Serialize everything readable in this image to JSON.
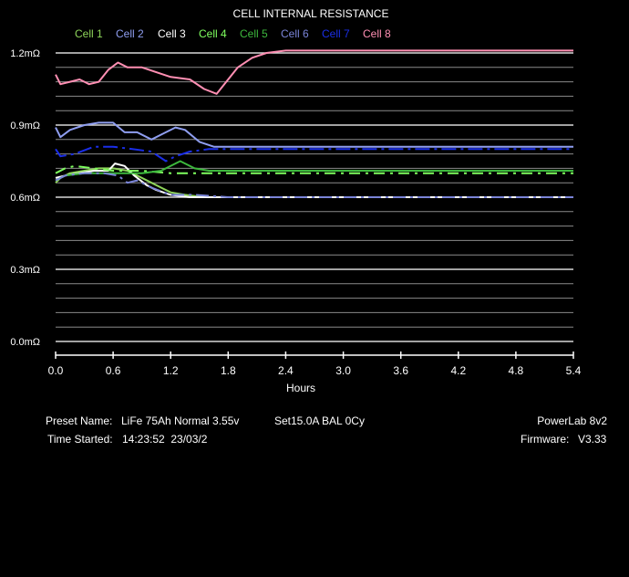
{
  "chart_data": {
    "type": "line",
    "title": "CELL INTERNAL RESISTANCE",
    "xlabel": "Hours",
    "ylabel": "",
    "xlim": [
      0.0,
      5.4
    ],
    "ylim": [
      0.0,
      1.2
    ],
    "x_ticks": [
      "0.0",
      "0.6",
      "1.2",
      "1.8",
      "2.4",
      "3.0",
      "3.6",
      "4.2",
      "4.8",
      "5.4"
    ],
    "y_ticks": [
      {
        "value": 0.0,
        "label": "0.0mΩ"
      },
      {
        "value": 0.3,
        "label": "0.3mΩ"
      },
      {
        "value": 0.6,
        "label": "0.6mΩ"
      },
      {
        "value": 0.9,
        "label": "0.9mΩ"
      },
      {
        "value": 1.2,
        "label": "1.2mΩ"
      }
    ],
    "grid": true,
    "legend": "top-center",
    "series": [
      {
        "name": "Cell 1",
        "color": "#8ed45a",
        "dash": "",
        "points": [
          [
            0,
            0.66
          ],
          [
            0.05,
            0.68
          ],
          [
            0.15,
            0.7
          ],
          [
            0.3,
            0.71
          ],
          [
            0.45,
            0.72
          ],
          [
            0.6,
            0.72
          ],
          [
            0.75,
            0.71
          ],
          [
            0.9,
            0.68
          ],
          [
            1.0,
            0.66
          ],
          [
            1.1,
            0.64
          ],
          [
            1.2,
            0.62
          ],
          [
            1.35,
            0.61
          ],
          [
            1.55,
            0.6
          ],
          [
            1.8,
            0.6
          ],
          [
            5.4,
            0.6
          ]
        ]
      },
      {
        "name": "Cell 2",
        "color": "#8f9ef0",
        "dash": "",
        "points": [
          [
            0,
            0.89
          ],
          [
            0.05,
            0.85
          ],
          [
            0.15,
            0.88
          ],
          [
            0.3,
            0.9
          ],
          [
            0.45,
            0.91
          ],
          [
            0.6,
            0.91
          ],
          [
            0.72,
            0.87
          ],
          [
            0.85,
            0.87
          ],
          [
            1.0,
            0.84
          ],
          [
            1.1,
            0.86
          ],
          [
            1.25,
            0.89
          ],
          [
            1.35,
            0.88
          ],
          [
            1.5,
            0.83
          ],
          [
            1.65,
            0.81
          ],
          [
            1.8,
            0.81
          ],
          [
            2.0,
            0.81
          ],
          [
            2.4,
            0.81
          ],
          [
            5.4,
            0.81
          ]
        ]
      },
      {
        "name": "Cell 3",
        "color": "#ffffff",
        "dash": "",
        "points": [
          [
            0,
            0.68
          ],
          [
            0.1,
            0.69
          ],
          [
            0.25,
            0.7
          ],
          [
            0.4,
            0.71
          ],
          [
            0.55,
            0.71
          ],
          [
            0.62,
            0.74
          ],
          [
            0.72,
            0.73
          ],
          [
            0.82,
            0.69
          ],
          [
            0.95,
            0.65
          ],
          [
            1.05,
            0.63
          ],
          [
            1.2,
            0.61
          ],
          [
            1.4,
            0.6
          ],
          [
            1.8,
            0.6
          ],
          [
            5.4,
            0.6
          ]
        ]
      },
      {
        "name": "Cell 4",
        "color": "#7fff5f",
        "dash": "12 6 3 6",
        "points": [
          [
            0,
            0.7
          ],
          [
            0.1,
            0.72
          ],
          [
            0.2,
            0.73
          ],
          [
            0.4,
            0.72
          ],
          [
            0.6,
            0.71
          ],
          [
            0.9,
            0.71
          ],
          [
            1.2,
            0.7
          ],
          [
            1.8,
            0.7
          ],
          [
            5.4,
            0.7
          ]
        ]
      },
      {
        "name": "Cell 5",
        "color": "#3db83d",
        "dash": "",
        "points": [
          [
            0,
            0.67
          ],
          [
            0.1,
            0.69
          ],
          [
            0.3,
            0.7
          ],
          [
            0.6,
            0.7
          ],
          [
            0.9,
            0.7
          ],
          [
            1.1,
            0.71
          ],
          [
            1.3,
            0.75
          ],
          [
            1.45,
            0.72
          ],
          [
            1.6,
            0.71
          ],
          [
            1.8,
            0.71
          ],
          [
            5.4,
            0.71
          ]
        ]
      },
      {
        "name": "Cell 6",
        "color": "#7a84d8",
        "dash": "14 5 3 5",
        "points": [
          [
            0,
            0.67
          ],
          [
            0.1,
            0.69
          ],
          [
            0.3,
            0.7
          ],
          [
            0.5,
            0.7
          ],
          [
            0.65,
            0.69
          ],
          [
            0.75,
            0.66
          ],
          [
            0.85,
            0.67
          ],
          [
            1.0,
            0.64
          ],
          [
            1.2,
            0.61
          ],
          [
            1.45,
            0.61
          ],
          [
            1.8,
            0.6
          ],
          [
            5.4,
            0.6
          ]
        ]
      },
      {
        "name": "Cell 7",
        "color": "#1a2ee8",
        "dash": "16 5 3 5",
        "points": [
          [
            0,
            0.8
          ],
          [
            0.05,
            0.77
          ],
          [
            0.2,
            0.78
          ],
          [
            0.4,
            0.81
          ],
          [
            0.6,
            0.81
          ],
          [
            0.8,
            0.8
          ],
          [
            1.0,
            0.79
          ],
          [
            1.15,
            0.75
          ],
          [
            1.25,
            0.77
          ],
          [
            1.4,
            0.79
          ],
          [
            1.6,
            0.8
          ],
          [
            1.8,
            0.8
          ],
          [
            5.4,
            0.8
          ]
        ]
      },
      {
        "name": "Cell 8",
        "color": "#ff8fb3",
        "dash": "",
        "points": [
          [
            0,
            1.11
          ],
          [
            0.05,
            1.07
          ],
          [
            0.15,
            1.08
          ],
          [
            0.25,
            1.09
          ],
          [
            0.3,
            1.08
          ],
          [
            0.35,
            1.07
          ],
          [
            0.45,
            1.08
          ],
          [
            0.55,
            1.13
          ],
          [
            0.65,
            1.16
          ],
          [
            0.75,
            1.14
          ],
          [
            0.9,
            1.14
          ],
          [
            1.05,
            1.12
          ],
          [
            1.2,
            1.1
          ],
          [
            1.4,
            1.09
          ],
          [
            1.55,
            1.05
          ],
          [
            1.68,
            1.03
          ],
          [
            1.78,
            1.08
          ],
          [
            1.9,
            1.14
          ],
          [
            2.05,
            1.18
          ],
          [
            2.2,
            1.2
          ],
          [
            2.4,
            1.21
          ],
          [
            5.4,
            1.21
          ]
        ]
      }
    ]
  },
  "info": {
    "preset_label": "Preset Name:",
    "preset_value": "LiFe 75Ah Normal 3.55v",
    "set_value": "Set15.0A BAL 0Cy",
    "time_label": "Time Started:",
    "time_value": "14:23:52  23/03/2",
    "device": "PowerLab 8v2",
    "firmware_label": "Firmware:",
    "firmware_value": "V3.33"
  }
}
